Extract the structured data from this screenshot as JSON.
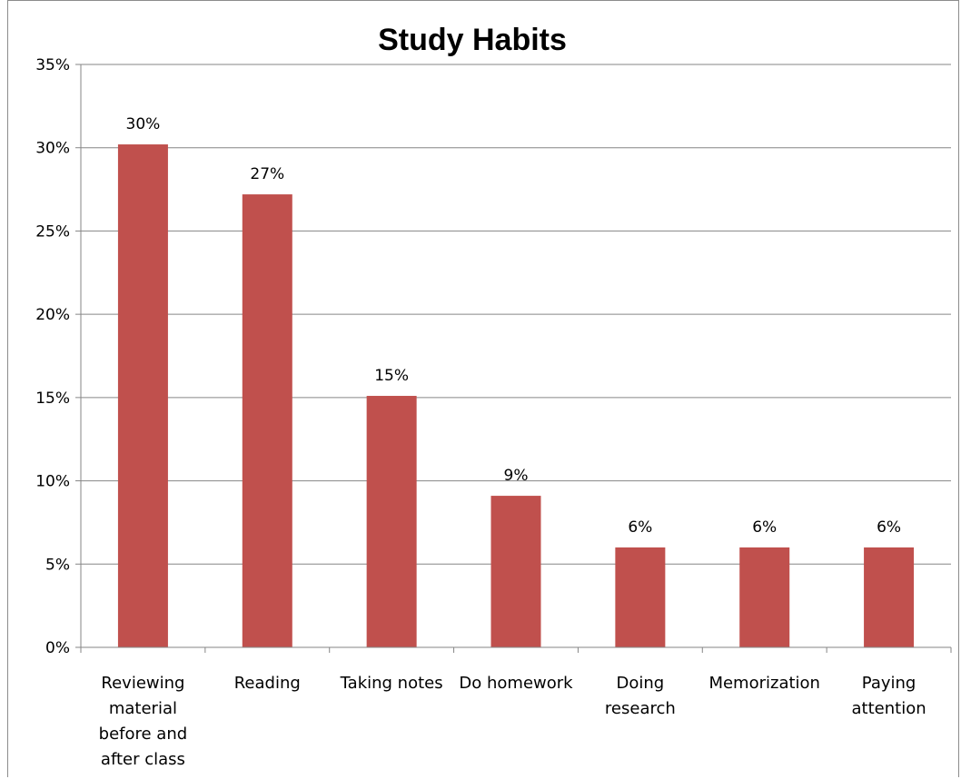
{
  "chart_data": {
    "type": "bar",
    "title": "Study Habits",
    "categories": [
      [
        "Reviewing",
        "material",
        "before and",
        "after class"
      ],
      [
        "Reading"
      ],
      [
        "Taking notes"
      ],
      [
        "Do homework"
      ],
      [
        "Doing",
        "research"
      ],
      [
        "Memorization"
      ],
      [
        "Paying",
        "attention"
      ]
    ],
    "values": [
      30.2,
      27.2,
      15.1,
      9.1,
      6.0,
      6.0,
      6.0
    ],
    "data_labels": [
      "30%",
      "27%",
      "15%",
      "9%",
      "6%",
      "6%",
      "6%"
    ],
    "ylim": [
      0,
      35
    ],
    "yticks": [
      0,
      5,
      10,
      15,
      20,
      25,
      30,
      35
    ],
    "ytick_labels": [
      "0%",
      "5%",
      "10%",
      "15%",
      "20%",
      "25%",
      "30%",
      "35%"
    ],
    "grid": true,
    "legend": "none",
    "bar_color": "#c0504d",
    "grid_color": "#868686"
  }
}
